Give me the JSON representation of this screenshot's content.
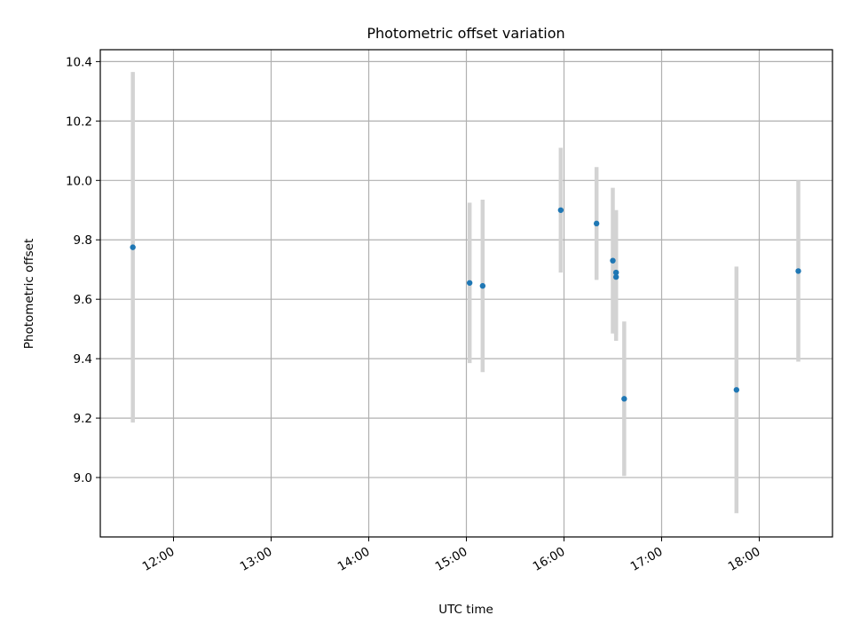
{
  "chart_data": {
    "type": "scatter",
    "title": "Photometric offset variation",
    "xlabel": "UTC time",
    "ylabel": "Photometric offset",
    "x_axis": "time of day",
    "xlim": [
      "11:15",
      "18:45"
    ],
    "ylim": [
      8.8,
      10.44
    ],
    "x_ticks": [
      "12:00",
      "13:00",
      "14:00",
      "15:00",
      "16:00",
      "17:00",
      "18:00"
    ],
    "y_ticks": [
      "9.0",
      "9.2",
      "9.4",
      "9.6",
      "9.8",
      "10.0",
      "10.2",
      "10.4"
    ],
    "grid": true,
    "point_color": "#1f77b4",
    "errorbar_color": "#d3d3d3",
    "points": [
      {
        "x": "11:35",
        "y": 9.775,
        "yerr": 0.59
      },
      {
        "x": "15:02",
        "y": 9.655,
        "yerr": 0.27
      },
      {
        "x": "15:10",
        "y": 9.645,
        "yerr": 0.29
      },
      {
        "x": "15:58",
        "y": 9.9,
        "yerr": 0.21
      },
      {
        "x": "16:20",
        "y": 9.855,
        "yerr": 0.19
      },
      {
        "x": "16:30",
        "y": 9.73,
        "yerr": 0.245
      },
      {
        "x": "16:32",
        "y": 9.69,
        "yerr": 0.21
      },
      {
        "x": "16:32",
        "y": 9.675,
        "yerr": 0.215
      },
      {
        "x": "16:37",
        "y": 9.265,
        "yerr": 0.26
      },
      {
        "x": "17:46",
        "y": 9.295,
        "yerr": 0.415
      },
      {
        "x": "18:24",
        "y": 9.695,
        "yerr": 0.305
      }
    ]
  }
}
